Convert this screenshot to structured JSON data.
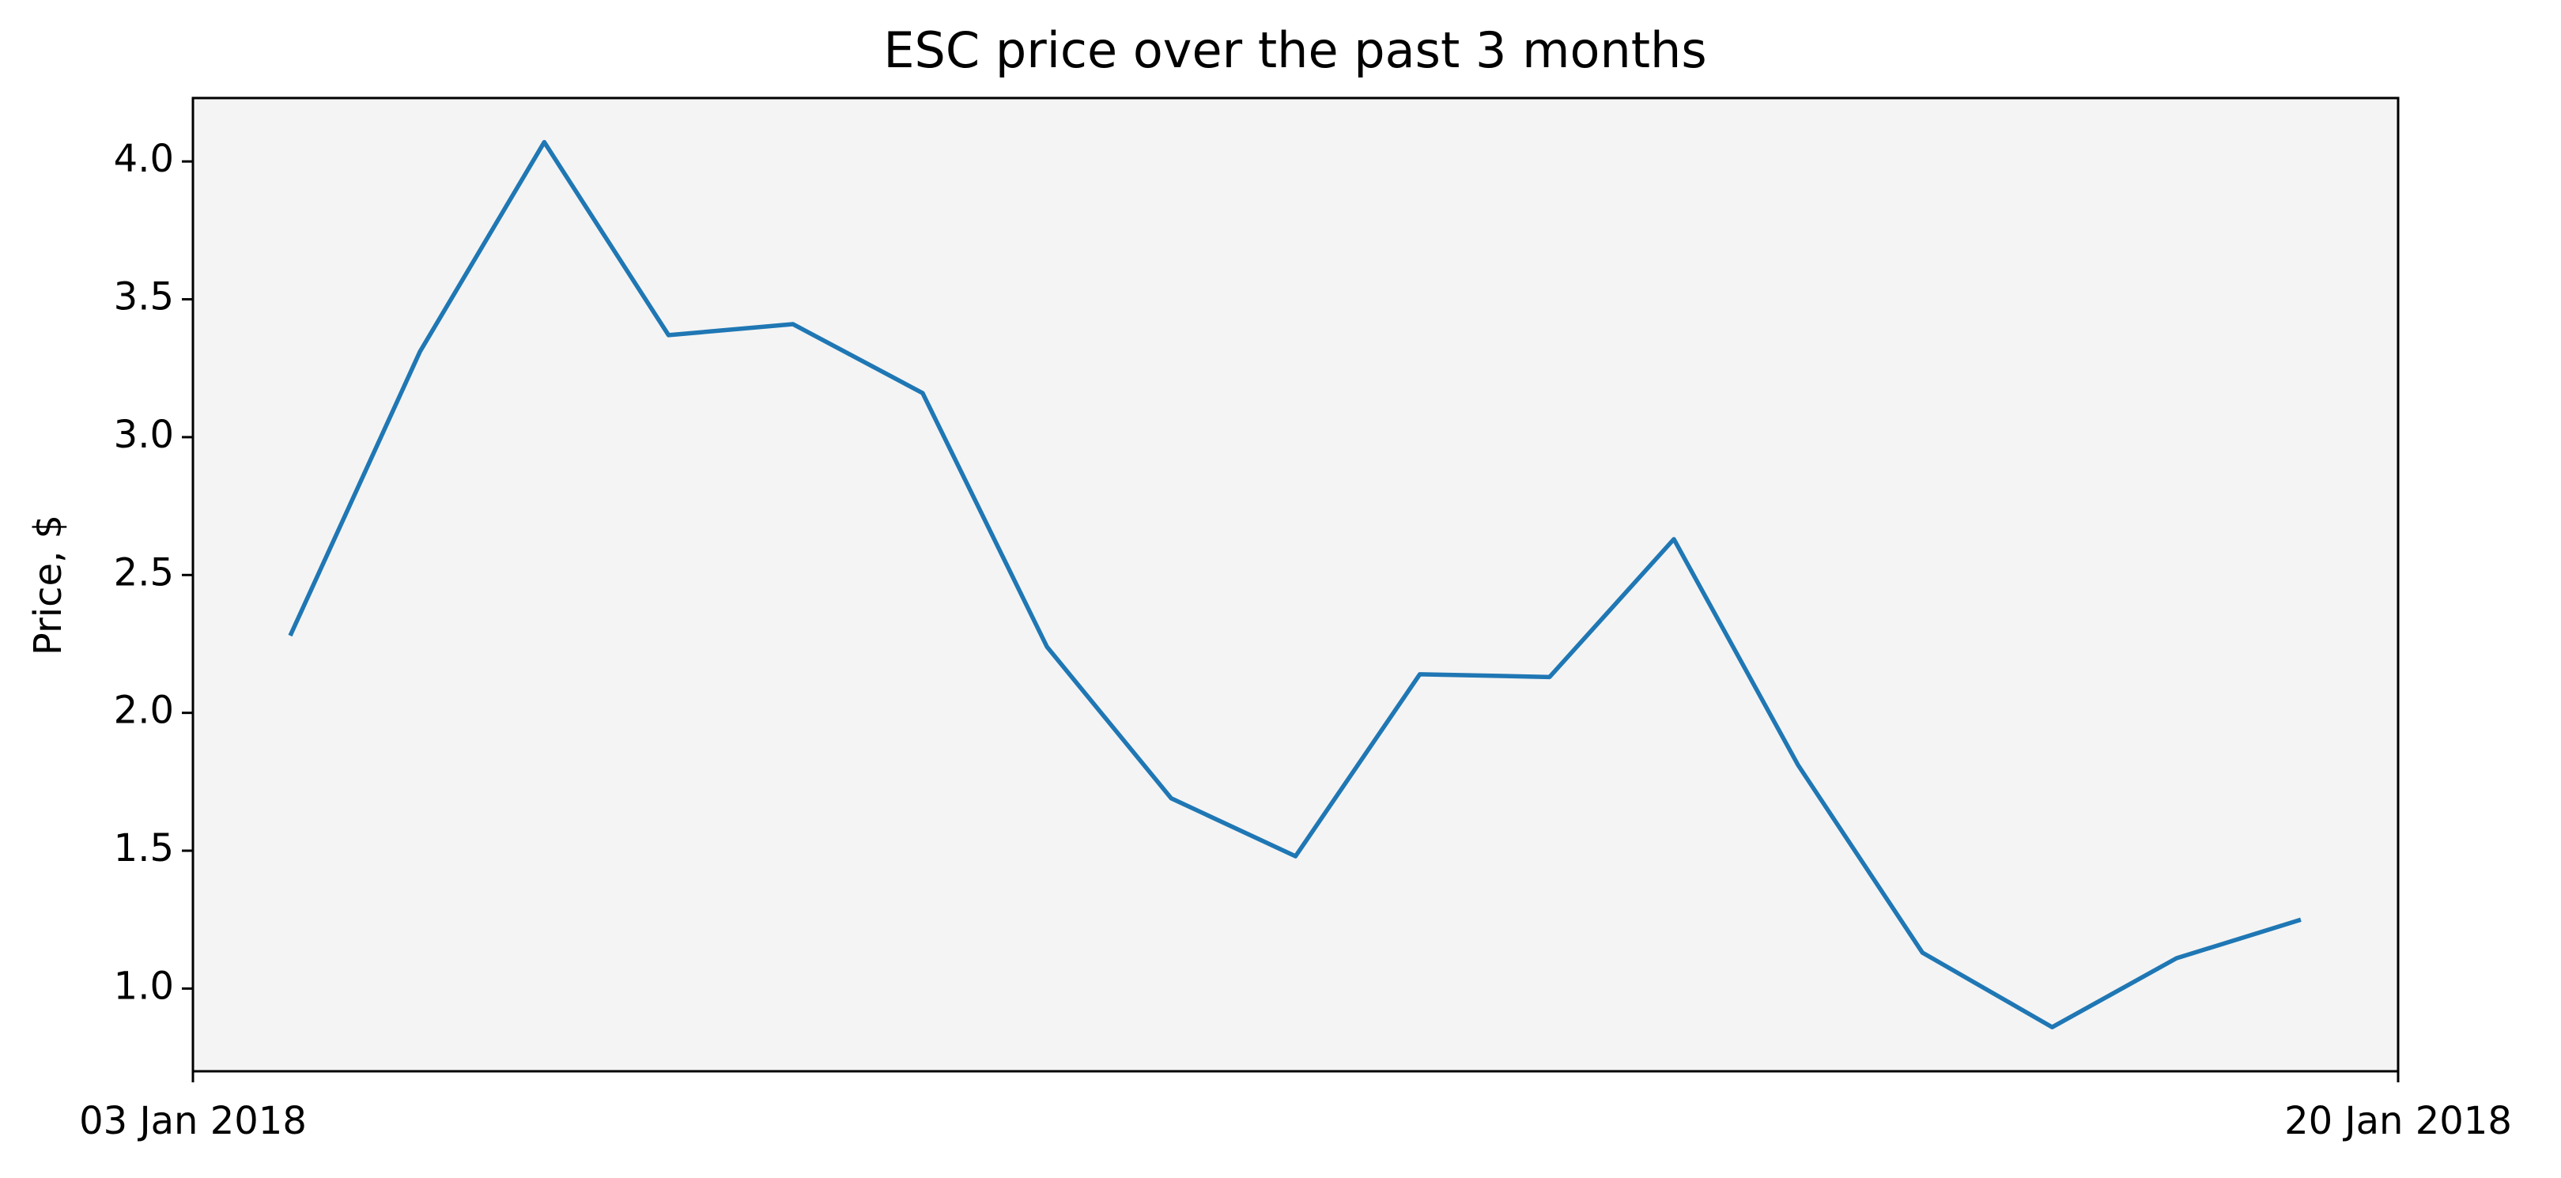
{
  "chart_data": {
    "type": "line",
    "title": "ESC price over the past 3 months",
    "ylabel": "Price, $",
    "x": [
      "2018-01-03T18:00",
      "2018-01-04T18:00",
      "2018-01-05T17:00",
      "2018-01-06T16:00",
      "2018-01-07T15:00",
      "2018-01-08T15:00",
      "2018-01-09T14:00",
      "2018-01-10T13:00",
      "2018-01-11T12:00",
      "2018-01-12T11:00",
      "2018-01-13T11:00",
      "2018-01-14T10:00",
      "2018-01-15T09:00",
      "2018-01-16T08:00",
      "2018-01-17T08:00",
      "2018-01-18T07:00",
      "2018-01-19T06:00"
    ],
    "series": [
      {
        "name": "ESC",
        "color": "#1f77b4",
        "values": [
          2.28,
          3.31,
          4.07,
          3.37,
          3.41,
          3.16,
          2.24,
          1.69,
          1.48,
          2.14,
          2.13,
          2.63,
          1.81,
          1.13,
          0.86,
          1.11,
          1.25
        ]
      }
    ],
    "xlim": [
      "2018-01-03T00:00",
      "2018-01-20T00:00"
    ],
    "xticks": [
      {
        "value": "2018-01-03T00:00",
        "label": "03 Jan 2018"
      },
      {
        "value": "2018-01-20T00:00",
        "label": "20 Jan 2018"
      }
    ],
    "ylim": [
      0.7,
      4.23
    ],
    "yticks": [
      {
        "value": 1.0,
        "label": "1.0"
      },
      {
        "value": 1.5,
        "label": "1.5"
      },
      {
        "value": 2.0,
        "label": "2.0"
      },
      {
        "value": 2.5,
        "label": "2.5"
      },
      {
        "value": 3.0,
        "label": "3.0"
      },
      {
        "value": 3.5,
        "label": "3.5"
      },
      {
        "value": 4.0,
        "label": "4.0"
      }
    ],
    "plot_background": "#f4f4f4"
  }
}
